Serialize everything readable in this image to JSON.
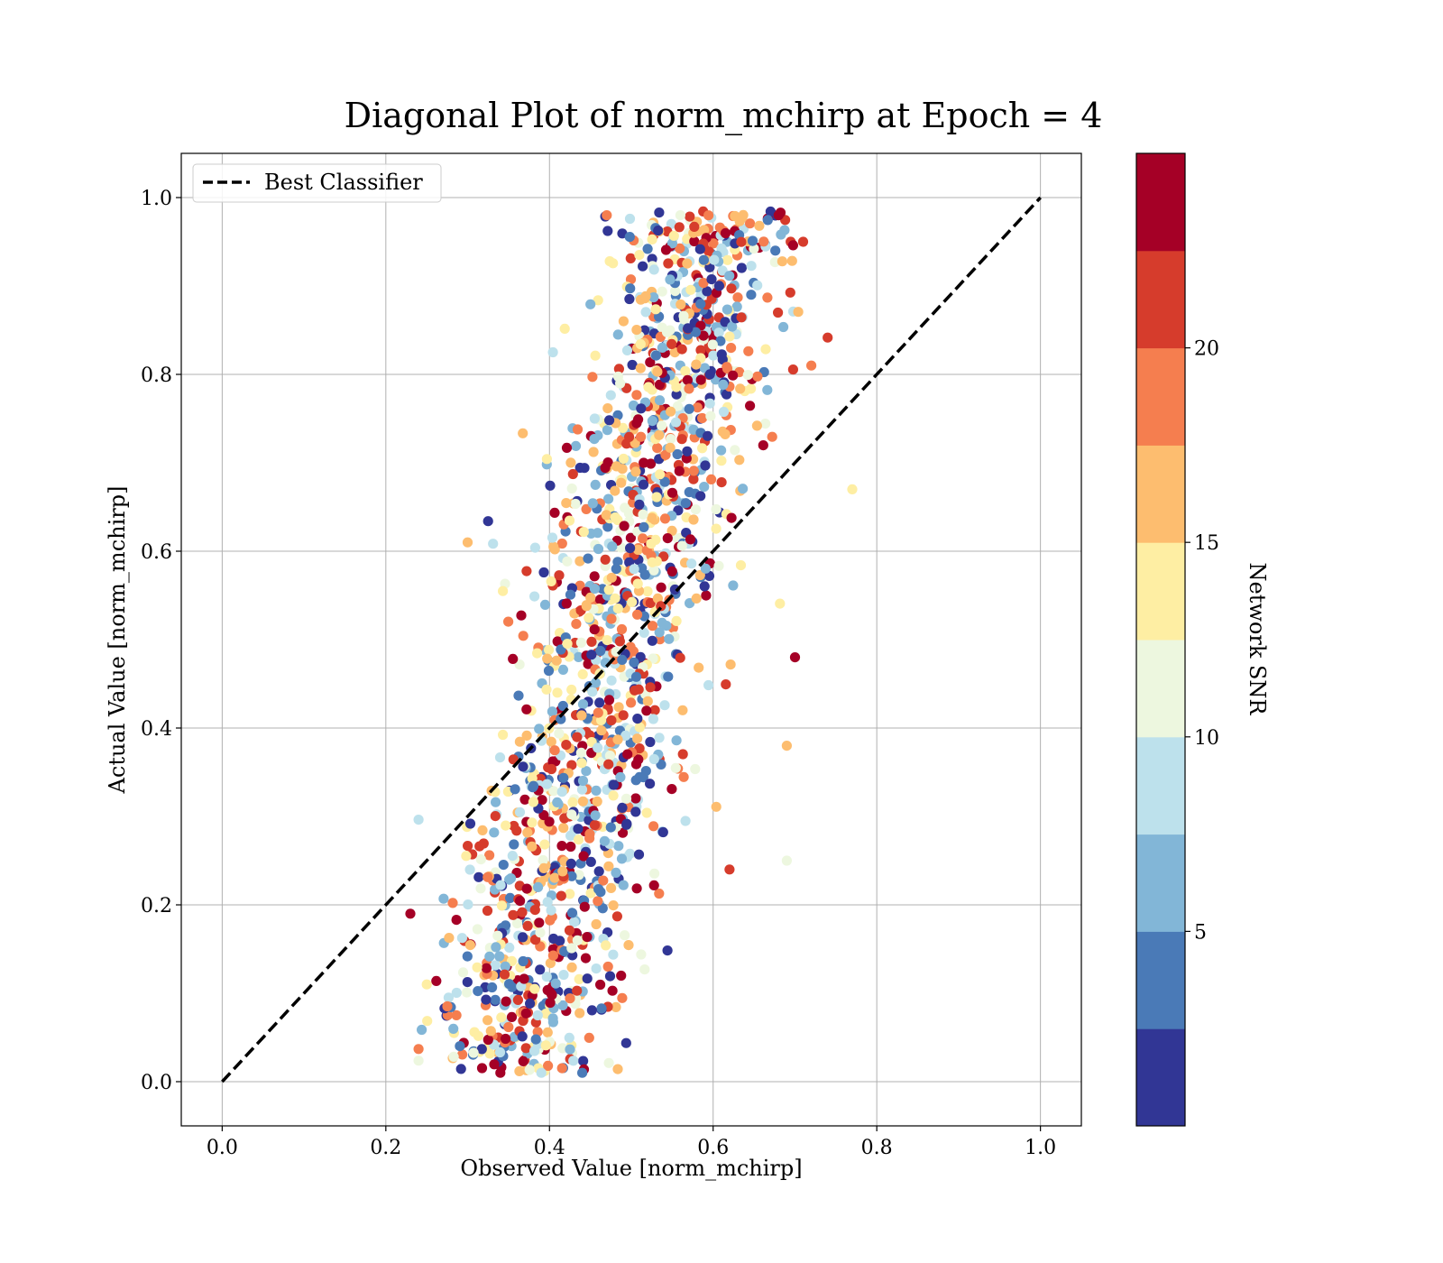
{
  "chart_data": {
    "type": "scatter",
    "title": "Diagonal Plot of norm_mchirp at Epoch = 4",
    "xlabel": "Observed Value [norm_mchirp]",
    "ylabel": "Actual Value [norm_mchirp]",
    "xlim": [
      -0.05,
      1.05
    ],
    "ylim": [
      -0.05,
      1.05
    ],
    "xticks": [
      0.0,
      0.2,
      0.4,
      0.6,
      0.8,
      1.0
    ],
    "yticks": [
      0.0,
      0.2,
      0.4,
      0.6,
      0.8,
      1.0
    ],
    "xtick_labels": [
      "0.0",
      "0.2",
      "0.4",
      "0.6",
      "0.8",
      "1.0"
    ],
    "ytick_labels": [
      "0.0",
      "0.2",
      "0.4",
      "0.6",
      "0.8",
      "1.0"
    ],
    "grid": true,
    "legend": {
      "placement": "upper-left",
      "entries": [
        "Best Classifier"
      ]
    },
    "reference_line": {
      "name": "Best Classifier",
      "style": "dashed",
      "color": "#000000",
      "x": [
        0.0,
        1.0
      ],
      "y": [
        0.0,
        1.0
      ]
    },
    "colorbar": {
      "label": "Network SNR",
      "ticks": [
        5,
        10,
        15,
        20
      ],
      "tick_labels": [
        "5",
        "10",
        "15",
        "20"
      ],
      "range": [
        0,
        25
      ],
      "colors": [
        "#313695",
        "#4a7ab7",
        "#82b6d7",
        "#bde1ec",
        "#edf7df",
        "#feeea3",
        "#fdbd6f",
        "#f57e4f",
        "#d63c2c",
        "#a50026"
      ]
    },
    "point_summary": {
      "count": 1600,
      "x_range": [
        0.23,
        0.77
      ],
      "y_range": [
        0.0,
        0.99
      ],
      "snr_range": [
        0,
        25
      ]
    },
    "sample_points": [
      {
        "x": 0.47,
        "y": 0.98,
        "snr": 18
      },
      {
        "x": 0.68,
        "y": 0.98,
        "snr": 24
      },
      {
        "x": 0.56,
        "y": 0.98,
        "snr": 11
      },
      {
        "x": 0.71,
        "y": 0.95,
        "snr": 22
      },
      {
        "x": 0.23,
        "y": 0.19,
        "snr": 24
      },
      {
        "x": 0.25,
        "y": 0.11,
        "snr": 14
      },
      {
        "x": 0.3,
        "y": 0.61,
        "snr": 15
      },
      {
        "x": 0.77,
        "y": 0.67,
        "snr": 14
      },
      {
        "x": 0.72,
        "y": 0.81,
        "snr": 19
      },
      {
        "x": 0.44,
        "y": 0.01,
        "snr": 4
      },
      {
        "x": 0.34,
        "y": 0.01,
        "snr": 24
      },
      {
        "x": 0.39,
        "y": 0.01,
        "snr": 9
      },
      {
        "x": 0.62,
        "y": 0.24,
        "snr": 20
      },
      {
        "x": 0.69,
        "y": 0.25,
        "snr": 11
      },
      {
        "x": 0.69,
        "y": 0.38,
        "snr": 16
      },
      {
        "x": 0.7,
        "y": 0.48,
        "snr": 24
      }
    ]
  }
}
